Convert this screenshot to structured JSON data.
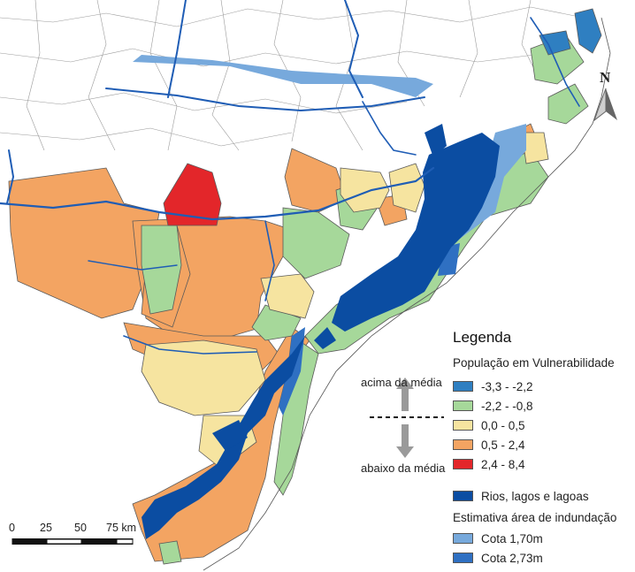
{
  "legend": {
    "title": "Legenda",
    "vulnerability_title": "População em Vulnerabilidade",
    "classes": [
      {
        "label": "-3,3 - -2,2",
        "color": "#2f7fc1"
      },
      {
        "label": "-2,2 - -0,8",
        "color": "#a6d89a"
      },
      {
        "label": "0,0 - 0,5",
        "color": "#f6e4a0"
      },
      {
        "label": "0,5 - 2,4",
        "color": "#f3a462"
      },
      {
        "label": "2,4 - 8,4",
        "color": "#e3262a"
      }
    ],
    "above_label": "acima da média",
    "below_label": "abaixo da média",
    "water_label": "Rios, lagos e lagoas",
    "water_color": "#0b4da2",
    "flood_title": "Estimativa área de indundação",
    "flood_classes": [
      {
        "label": "Cota 1,70m",
        "color": "#77a9dc"
      },
      {
        "label": "Cota 2,73m",
        "color": "#2f70c2"
      }
    ]
  },
  "north_label": "N",
  "scale_bar": {
    "ticks": [
      "0",
      "25",
      "50",
      "75 km"
    ]
  },
  "colors": {
    "boundary": "#444444",
    "background": "#ffffff",
    "river_outline": "#1f5db5"
  }
}
